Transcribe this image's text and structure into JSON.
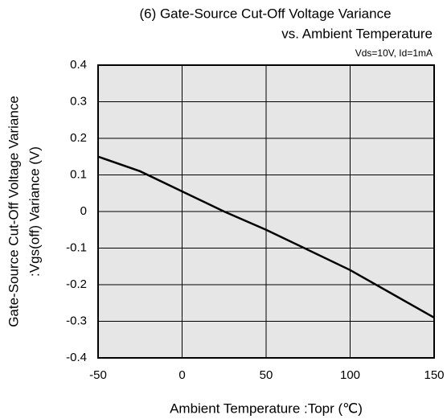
{
  "chart_data": {
    "type": "line",
    "title": [
      "(6) Gate-Source Cut-Off Voltage Variance",
      "vs. Ambient Temperature"
    ],
    "annotation": "Vds=10V, Id=1mA",
    "xlabel": "Ambient Temperature :Topr (℃)",
    "ylabel": [
      "Gate-Source Cut-Off Voltage Variance",
      ":Vgs(off) Variance  (V)"
    ],
    "x": [
      -50,
      -25,
      0,
      25,
      50,
      75,
      100,
      125,
      150
    ],
    "series": [
      {
        "color": "#000000",
        "values": [
          0.15,
          0.11,
          0.055,
          0,
          -0.05,
          -0.105,
          -0.16,
          -0.225,
          -0.29
        ]
      }
    ],
    "xlim": [
      -50,
      150
    ],
    "xticks": [
      -50,
      0,
      50,
      100,
      150
    ],
    "ylim": [
      -0.4,
      0.4
    ],
    "yticks": [
      0.4,
      0.3,
      0.2,
      0.1,
      0,
      -0.1,
      -0.2,
      -0.3,
      -0.4
    ],
    "grid": true
  }
}
